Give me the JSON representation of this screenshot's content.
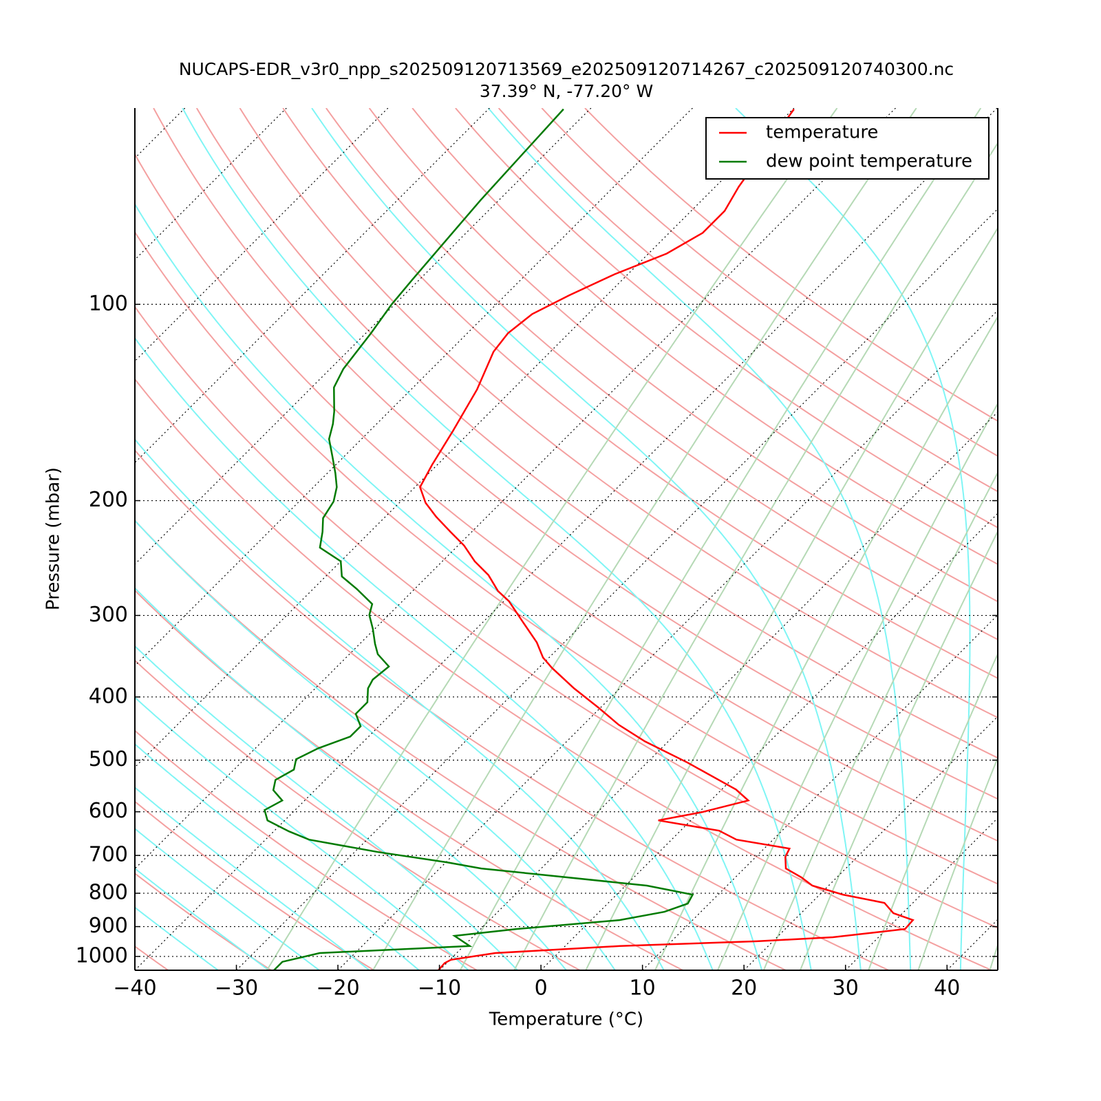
{
  "chart_data": {
    "type": "skewt",
    "title": "NUCAPS-EDR_v3r0_npp_s202509120713569_e202509120714267_c202509120740300.nc",
    "subtitle": "37.39° N, -77.20° W",
    "x_label": "Temperature (°C)",
    "y_label": "Pressure (mbar)",
    "xlim": [
      -40,
      45
    ],
    "ylim": [
      1050,
      50
    ],
    "log_y": true,
    "grid": true,
    "legend": "upper right",
    "xticks": [
      {
        "value": -40,
        "label": "−40"
      },
      {
        "value": -30,
        "label": "−30"
      },
      {
        "value": -20,
        "label": "−20"
      },
      {
        "value": -10,
        "label": "−10"
      },
      0,
      10,
      20,
      30,
      40
    ],
    "yticks": [
      100,
      200,
      300,
      400,
      500,
      600,
      700,
      800,
      900,
      1000
    ],
    "series": [
      {
        "name": "temperature",
        "color": "#ff0000",
        "pressure": [
          50.2,
          66.0,
          71.9,
          77.7,
          83.6,
          89.9,
          96.9,
          103.5,
          110.7,
          118.2,
          135.1,
          156.3,
          176.4,
          190.7,
          201.6,
          211.7,
          223.3,
          234.4,
          247.8,
          260.1,
          275.1,
          285.3,
          306.9,
          330.0,
          348.1,
          361.0,
          388.1,
          415.4,
          441.5,
          468.0,
          504.5,
          554.6,
          576.6,
          600.8,
          618.5,
          641.5,
          662.1,
          683.3,
          703.5,
          733.1,
          756.3,
          778.8,
          804.0,
          827.7,
          858.4,
          879.6,
          907.7,
          934.5,
          948,
          964,
          988,
          1012,
          1024,
          1050
        ],
        "values": [
          -59.9,
          -57.7,
          -56.7,
          -56.7,
          -58.2,
          -61.3,
          -63.7,
          -65.5,
          -66.0,
          -65.6,
          -63.5,
          -61.8,
          -60.5,
          -59.5,
          -57.4,
          -55.0,
          -52.1,
          -49.4,
          -46.8,
          -44.1,
          -41.6,
          -39.5,
          -36.1,
          -32.7,
          -30.6,
          -28.7,
          -24.5,
          -20.2,
          -16.5,
          -12.3,
          -6.0,
          1.4,
          3.7,
          0.3,
          -3.2,
          3.8,
          6.4,
          12.5,
          12.9,
          14.1,
          16.5,
          18.4,
          22.3,
          27.2,
          29.1,
          31.7,
          31.8,
          25.5,
          18.4,
          5.4,
          -6.2,
          -9.9,
          -10.2,
          -10.1
        ]
      },
      {
        "name": "dew point temperature",
        "color": "#007a00",
        "pressure": [
          50.2,
          69.3,
          91.6,
          100,
          110.7,
          125.6,
          134.1,
          146.0,
          152.6,
          160.9,
          171.4,
          181.6,
          190.7,
          200.6,
          212.7,
          223.3,
          236.1,
          247.8,
          261.4,
          273.2,
          288.1,
          299.5,
          314.4,
          331.6,
          344.0,
          359.3,
          376.2,
          388.1,
          407.5,
          424.6,
          443.6,
          460.1,
          479.5,
          498.5,
          517.0,
          536.2,
          556,
          576.6,
          596.4,
          618.5,
          643,
          662.1,
          691.6,
          717.2,
          733.1,
          778.8,
          804,
          829.8,
          854.2,
          879.6,
          907.7,
          929.9,
          964,
          988,
          1019,
          1050
        ],
        "values": [
          -82.6,
          -81.8,
          -80.7,
          -80.3,
          -79.5,
          -78.7,
          -77.8,
          -75.4,
          -74.3,
          -73.2,
          -71.1,
          -69.2,
          -67.7,
          -66.6,
          -66.0,
          -64.7,
          -63.4,
          -60.0,
          -58.4,
          -55.7,
          -52.7,
          -51.9,
          -50.2,
          -48.5,
          -47.2,
          -44.9,
          -45.2,
          -44.8,
          -43.5,
          -43.5,
          -41.8,
          -41.8,
          -43.8,
          -44.9,
          -44.1,
          -44.9,
          -44.1,
          -42.2,
          -43.0,
          -41.7,
          -38.5,
          -35.7,
          -27.7,
          -19.9,
          -15.9,
          2.1,
          7.5,
          7.9,
          6.4,
          2.8,
          -6.5,
          -11.9,
          -9.4,
          -23.5,
          -26.3,
          -26.3
        ]
      }
    ]
  }
}
